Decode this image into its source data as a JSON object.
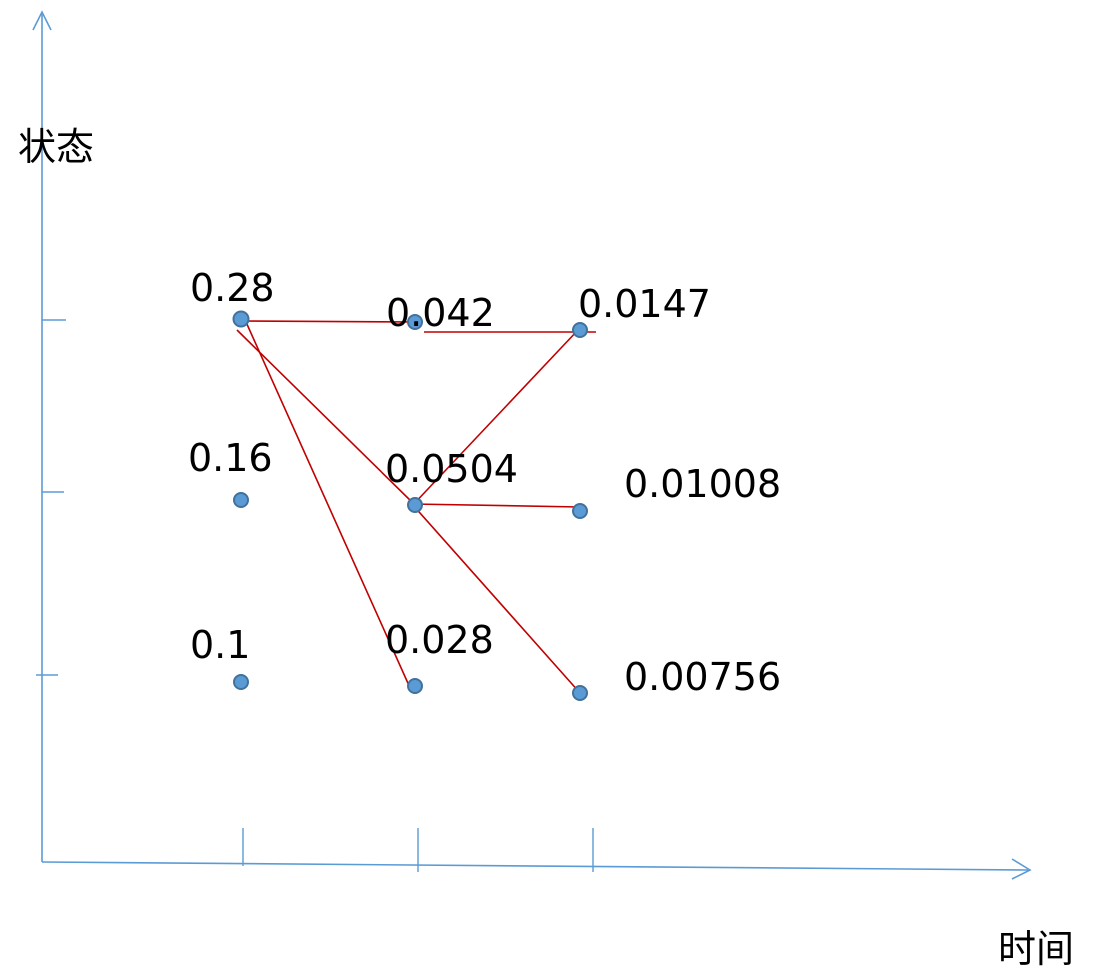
{
  "axes": {
    "y_label": "状态",
    "x_label": "时间",
    "color": "#5b9bd5"
  },
  "states": 3,
  "time_steps": 3,
  "nodes": [
    {
      "id": "t1-s1",
      "time": 1,
      "state": 1,
      "label": "0.28"
    },
    {
      "id": "t1-s2",
      "time": 1,
      "state": 2,
      "label": "0.16"
    },
    {
      "id": "t1-s3",
      "time": 1,
      "state": 3,
      "label": "0.1"
    },
    {
      "id": "t2-s1",
      "time": 2,
      "state": 1,
      "label": "0.042"
    },
    {
      "id": "t2-s2",
      "time": 2,
      "state": 2,
      "label": "0.0504"
    },
    {
      "id": "t2-s3",
      "time": 2,
      "state": 3,
      "label": "0.028"
    },
    {
      "id": "t3-s1",
      "time": 3,
      "state": 1,
      "label": "0.0147"
    },
    {
      "id": "t3-s2",
      "time": 3,
      "state": 2,
      "label": "0.01008"
    },
    {
      "id": "t3-s3",
      "time": 3,
      "state": 3,
      "label": "0.00756"
    }
  ],
  "edges": [
    {
      "from": "t1-s1",
      "to": "t2-s1"
    },
    {
      "from": "t1-s1",
      "to": "t2-s2"
    },
    {
      "from": "t1-s1",
      "to": "t2-s3"
    },
    {
      "from": "t2-s1",
      "to": "t3-s1"
    },
    {
      "from": "t2-s2",
      "to": "t3-s1"
    },
    {
      "from": "t2-s2",
      "to": "t3-s2"
    },
    {
      "from": "t2-s2",
      "to": "t3-s3"
    }
  ],
  "colors": {
    "node_fill": "#5b9bd5",
    "node_stroke": "#41719c",
    "edge": "#c00000",
    "text": "#000000"
  }
}
